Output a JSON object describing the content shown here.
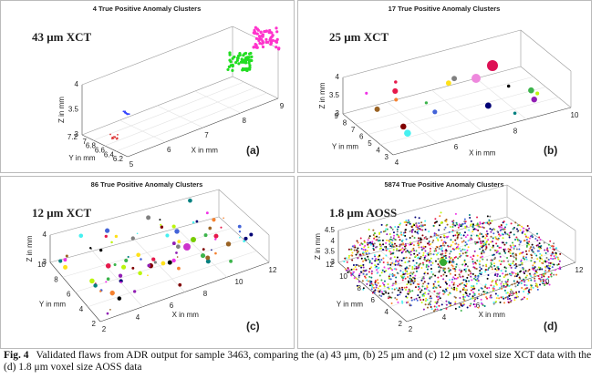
{
  "figure": {
    "panels": [
      {
        "title": "4 True Positive Anomaly Clusters",
        "label": "43 μm XCT",
        "letter": "(a)",
        "x_axis_label": "X in mm",
        "y_axis_label": "Y in mm",
        "z_axis_label": "Z in mm",
        "xticks": [
          "5",
          "6",
          "7",
          "8",
          "9"
        ],
        "yticks": [
          "7.2",
          "7",
          "6.8",
          "6.6",
          "6.4",
          "6.2"
        ],
        "zticks": [
          "3",
          "3.5",
          "4"
        ]
      },
      {
        "title": "17 True Positive Anomaly Clusters",
        "label": "25 μm XCT",
        "letter": "(b)",
        "x_axis_label": "X in mm",
        "y_axis_label": "Y in mm",
        "z_axis_label": "Z in mm",
        "xticks": [
          "4",
          "6",
          "8",
          "10"
        ],
        "yticks": [
          "9",
          "8",
          "7",
          "6",
          "5",
          "4",
          "3"
        ],
        "zticks": [
          "3",
          "3.5",
          "4"
        ]
      },
      {
        "title": "86 True Positive Anomaly Clusters",
        "label": "12 μm XCT",
        "letter": "(c)",
        "x_axis_label": "X in mm",
        "y_axis_label": "Y in mm",
        "z_axis_label": "Z in mm",
        "xticks": [
          "2",
          "4",
          "6",
          "8",
          "10",
          "12"
        ],
        "yticks": [
          "10",
          "8",
          "6",
          "4",
          "2"
        ],
        "zticks": [
          "3",
          "4"
        ]
      },
      {
        "title": "5874 True Positive Anomaly Clusters",
        "label": "1.8 μm AOSS",
        "letter": "(d)",
        "x_axis_label": "X in mm",
        "y_axis_label": "Y in mm",
        "z_axis_label": "Z in mm",
        "xticks": [
          "2",
          "4",
          "6",
          "8",
          "10",
          "12"
        ],
        "yticks": [
          "12",
          "10",
          "8",
          "6",
          "4",
          "2"
        ],
        "zticks": [
          "3",
          "3.5",
          "4",
          "4.5"
        ]
      }
    ],
    "caption": {
      "label": "Fig. 4",
      "text": "Validated flaws from ADR output for sample 3463, comparing the (a) 43 μm, (b) 25 μm and (c) 12 μm voxel size XCT data with the (d) 1.8 μm voxel size AOSS data"
    }
  }
}
